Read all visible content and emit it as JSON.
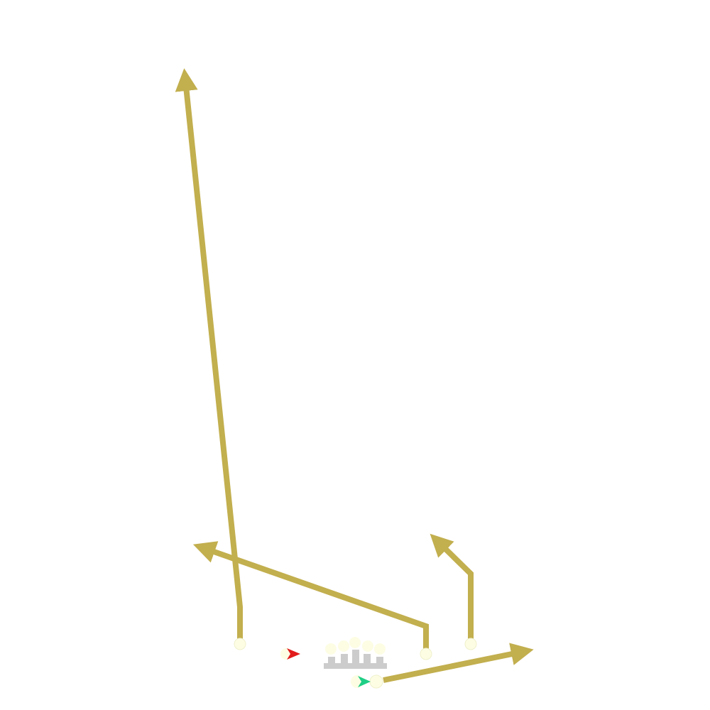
{
  "colors": {
    "background": "#ffffff",
    "route": "#c2af4e",
    "player_fill": "#fdfde4",
    "player_stroke": "#f0f0cc",
    "lineman": "#cccccc",
    "red_marker": "#e21b1b",
    "green_marker": "#1fce86"
  },
  "players": [
    {
      "id": "receiver-left",
      "route": "go-route"
    },
    {
      "id": "receiver-slot",
      "route": "in-route"
    },
    {
      "id": "receiver-right",
      "route": "corner-route"
    },
    {
      "id": "running-back",
      "route": "flat-route"
    }
  ],
  "markers": [
    {
      "id": "red-arrow-marker",
      "color": "red"
    },
    {
      "id": "green-arrow-marker",
      "color": "green"
    }
  ],
  "offensive_line": {
    "count": 5
  }
}
